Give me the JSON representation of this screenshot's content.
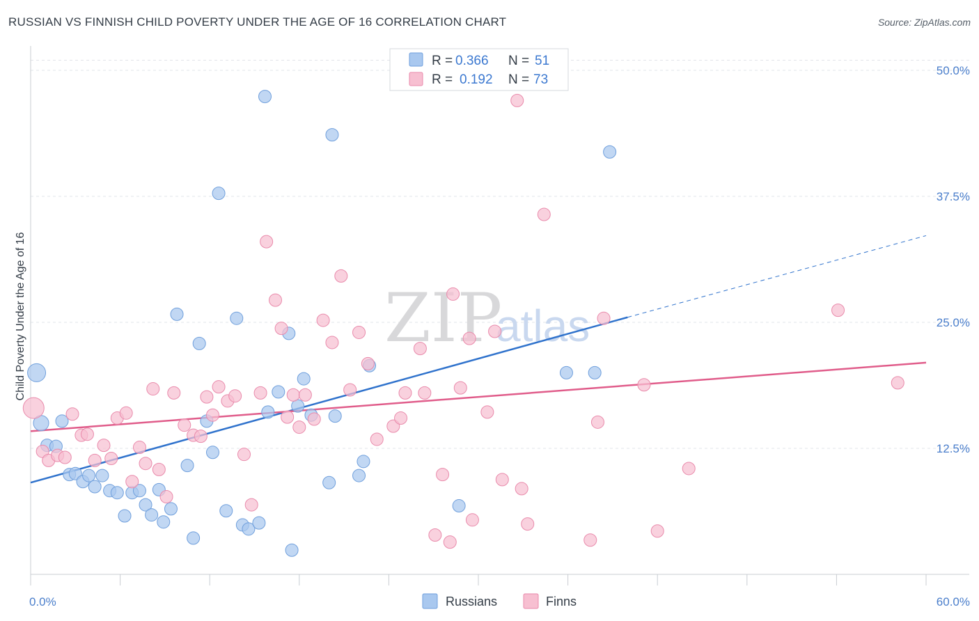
{
  "title": "RUSSIAN VS FINNISH CHILD POVERTY UNDER THE AGE OF 16 CORRELATION CHART",
  "source": "Source: ZipAtlas.com",
  "watermark": {
    "zip": "ZIP",
    "atlas": "atlas"
  },
  "chart_data": {
    "type": "scatter",
    "ylabel": "Child Poverty Under the Age of 16",
    "xlim": [
      0,
      60
    ],
    "ylim": [
      0,
      52
    ],
    "x_tick_labels": [
      {
        "v": 0,
        "label": "0.0%"
      },
      {
        "v": 60,
        "label": "60.0%"
      }
    ],
    "y_tick_labels": [
      {
        "v": 12.5,
        "label": "12.5%"
      },
      {
        "v": 25,
        "label": "25.0%"
      },
      {
        "v": 37.5,
        "label": "37.5%"
      },
      {
        "v": 50,
        "label": "50.0%"
      }
    ],
    "legend": {
      "rows": [
        {
          "r_label": "R =",
          "r_value": "0.366",
          "n_label": "N =",
          "n_value": "51"
        },
        {
          "r_label": "R =",
          "r_value": "0.192",
          "n_label": "N =",
          "n_value": "73"
        }
      ]
    },
    "series": [
      {
        "name": "Russians",
        "color": "#a9c8ef",
        "stroke": "#6f9fdc",
        "line_color": "#2f72cc",
        "trend": {
          "x0": 0,
          "y0": 9.1,
          "x1": 40,
          "y1": 25.5,
          "dash_to_x": 60,
          "dash_to_y": 33.6
        },
        "points": [
          [
            0.4,
            20.0,
            13
          ],
          [
            0.7,
            15.0,
            11
          ],
          [
            1.1,
            12.8,
            9
          ],
          [
            1.7,
            12.7,
            9
          ],
          [
            2.1,
            15.2,
            9
          ],
          [
            2.6,
            9.9,
            9
          ],
          [
            3.0,
            10.0,
            9
          ],
          [
            3.5,
            9.2,
            9
          ],
          [
            3.9,
            9.8,
            9
          ],
          [
            4.3,
            8.7,
            9
          ],
          [
            4.8,
            9.8,
            9
          ],
          [
            5.3,
            8.3,
            9
          ],
          [
            5.8,
            8.1,
            9
          ],
          [
            6.3,
            5.8,
            9
          ],
          [
            6.8,
            8.1,
            9
          ],
          [
            7.3,
            8.3,
            9
          ],
          [
            7.7,
            6.9,
            9
          ],
          [
            8.1,
            5.9,
            9
          ],
          [
            8.6,
            8.4,
            9
          ],
          [
            8.9,
            5.2,
            9
          ],
          [
            9.4,
            6.5,
            9
          ],
          [
            9.8,
            25.8,
            9
          ],
          [
            10.5,
            10.8,
            9
          ],
          [
            10.9,
            3.6,
            9
          ],
          [
            11.3,
            22.9,
            9
          ],
          [
            11.8,
            15.2,
            9
          ],
          [
            12.2,
            12.1,
            9
          ],
          [
            12.6,
            37.8,
            9
          ],
          [
            13.1,
            6.3,
            9
          ],
          [
            13.8,
            25.4,
            9
          ],
          [
            14.2,
            4.9,
            9
          ],
          [
            14.6,
            4.5,
            9
          ],
          [
            15.3,
            5.1,
            9
          ],
          [
            15.7,
            47.4,
            9
          ],
          [
            15.9,
            16.1,
            9
          ],
          [
            16.6,
            18.1,
            9
          ],
          [
            17.3,
            23.9,
            9
          ],
          [
            17.5,
            2.4,
            9
          ],
          [
            17.9,
            16.7,
            9
          ],
          [
            18.3,
            19.4,
            9
          ],
          [
            18.8,
            15.8,
            9
          ],
          [
            20.0,
            9.1,
            9
          ],
          [
            20.2,
            43.6,
            9
          ],
          [
            20.4,
            15.7,
            9
          ],
          [
            22.0,
            9.8,
            9
          ],
          [
            22.3,
            11.2,
            9
          ],
          [
            22.7,
            20.7,
            9
          ],
          [
            28.7,
            6.8,
            9
          ],
          [
            35.9,
            20.0,
            9
          ],
          [
            37.8,
            20.0,
            9
          ],
          [
            38.8,
            41.9,
            9
          ]
        ]
      },
      {
        "name": "Finns",
        "color": "#f7bfd1",
        "stroke": "#e98aab",
        "line_color": "#e05c8a",
        "trend": {
          "x0": 0,
          "y0": 14.2,
          "x1": 60,
          "y1": 21.0
        },
        "points": [
          [
            0.2,
            16.5,
            15
          ],
          [
            0.8,
            12.2,
            9
          ],
          [
            1.2,
            11.3,
            9
          ],
          [
            1.8,
            11.8,
            9
          ],
          [
            2.3,
            11.6,
            9
          ],
          [
            2.8,
            15.9,
            9
          ],
          [
            3.4,
            13.8,
            9
          ],
          [
            3.8,
            13.9,
            9
          ],
          [
            4.3,
            11.3,
            9
          ],
          [
            4.9,
            12.8,
            9
          ],
          [
            5.4,
            11.5,
            9
          ],
          [
            5.8,
            15.5,
            9
          ],
          [
            6.4,
            16.0,
            9
          ],
          [
            6.8,
            9.2,
            9
          ],
          [
            7.3,
            12.6,
            9
          ],
          [
            7.7,
            11.0,
            9
          ],
          [
            8.2,
            18.4,
            9
          ],
          [
            8.6,
            10.4,
            9
          ],
          [
            9.1,
            7.7,
            9
          ],
          [
            9.6,
            18.0,
            9
          ],
          [
            10.3,
            14.8,
            9
          ],
          [
            10.9,
            13.8,
            9
          ],
          [
            11.4,
            13.7,
            9
          ],
          [
            11.8,
            17.6,
            9
          ],
          [
            12.2,
            15.8,
            9
          ],
          [
            12.6,
            18.6,
            9
          ],
          [
            13.2,
            17.2,
            9
          ],
          [
            13.7,
            17.7,
            9
          ],
          [
            14.3,
            11.9,
            9
          ],
          [
            14.8,
            6.9,
            9
          ],
          [
            15.4,
            18.0,
            9
          ],
          [
            15.8,
            33.0,
            9
          ],
          [
            16.4,
            27.2,
            9
          ],
          [
            16.8,
            24.4,
            9
          ],
          [
            17.2,
            15.6,
            9
          ],
          [
            17.6,
            17.8,
            9
          ],
          [
            18.0,
            14.6,
            9
          ],
          [
            18.4,
            17.8,
            9
          ],
          [
            19.0,
            15.4,
            9
          ],
          [
            19.6,
            25.2,
            9
          ],
          [
            20.2,
            23.0,
            9
          ],
          [
            20.8,
            29.6,
            9
          ],
          [
            21.4,
            18.3,
            9
          ],
          [
            22.0,
            24.0,
            9
          ],
          [
            22.6,
            20.9,
            9
          ],
          [
            23.2,
            13.4,
            9
          ],
          [
            24.3,
            14.7,
            9
          ],
          [
            24.8,
            15.5,
            9
          ],
          [
            25.1,
            18.0,
            9
          ],
          [
            26.1,
            22.4,
            9
          ],
          [
            26.4,
            18.0,
            9
          ],
          [
            27.1,
            3.9,
            9
          ],
          [
            27.6,
            9.9,
            9
          ],
          [
            28.1,
            3.2,
            9
          ],
          [
            28.3,
            27.8,
            9
          ],
          [
            28.8,
            18.5,
            9
          ],
          [
            29.4,
            23.4,
            9
          ],
          [
            29.6,
            5.4,
            9
          ],
          [
            30.6,
            16.1,
            9
          ],
          [
            31.1,
            24.1,
            9
          ],
          [
            31.6,
            9.4,
            9
          ],
          [
            32.6,
            47.0,
            9
          ],
          [
            32.9,
            8.5,
            9
          ],
          [
            33.3,
            5.0,
            9
          ],
          [
            34.4,
            35.7,
            9
          ],
          [
            37.5,
            3.4,
            9
          ],
          [
            38.0,
            15.1,
            9
          ],
          [
            38.4,
            25.4,
            9
          ],
          [
            41.1,
            18.8,
            9
          ],
          [
            42.0,
            4.3,
            9
          ],
          [
            44.1,
            10.5,
            9
          ],
          [
            54.1,
            26.2,
            9
          ],
          [
            58.1,
            19.0,
            9
          ]
        ]
      }
    ]
  }
}
